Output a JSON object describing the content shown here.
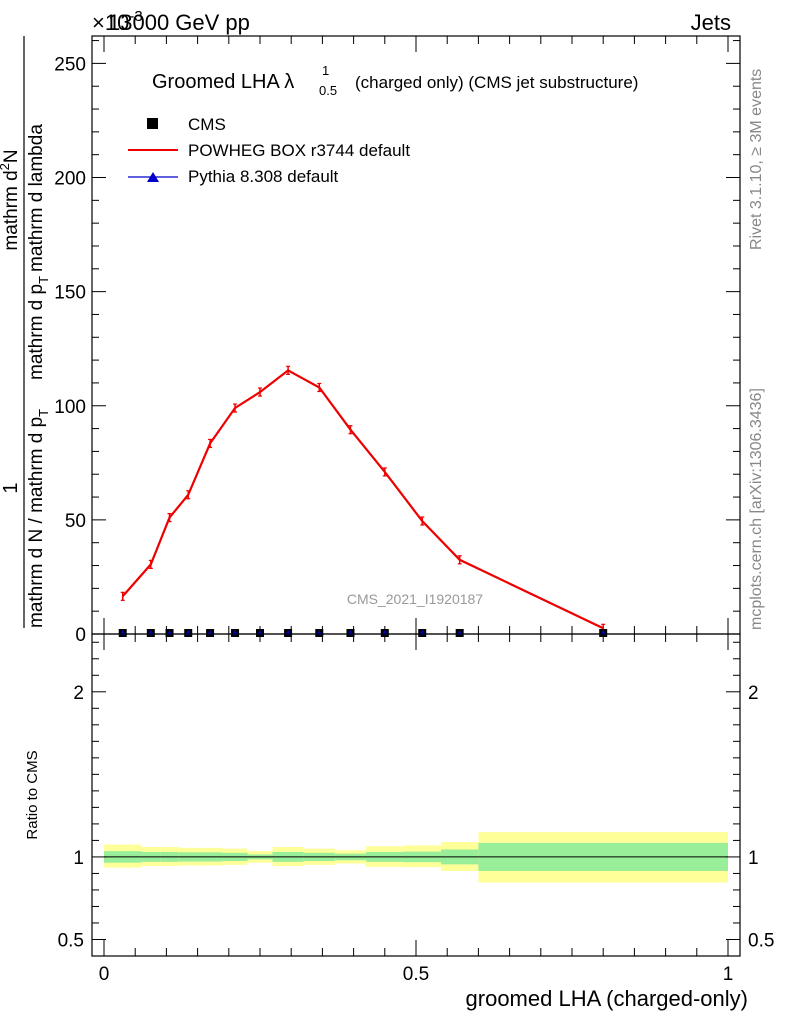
{
  "header": {
    "process": "13000 GeV pp",
    "category": "Jets",
    "multiplier": "×10",
    "multiplier_exp": "-3"
  },
  "side_labels": {
    "rivet": "Rivet 3.1.10, ≥ 3M events",
    "mcplots": "mcplots.cern.ch [arXiv:1306.3436]"
  },
  "watermark": "CMS_2021_I1920187",
  "chart_data": [
    {
      "type": "line",
      "title_main": "Groomed LHA λ",
      "title_sup": "1",
      "title_sub": "0.5",
      "title_rest": "(charged only) (CMS jet substructure)",
      "ylabel": {
        "numerator": "1",
        "denominator": "mathrm d N / mathrm d p",
        "denominator_sub": "T",
        "upper": "mathrm d",
        "upper_sup": "2",
        "upper_rest": "N",
        "lower": "mathrm d p",
        "lower_sub": "T",
        "lower_rest": "mathrm d lambda"
      },
      "xlim": [
        0,
        1
      ],
      "ylim": [
        0,
        262
      ],
      "yticks": [
        0,
        50,
        100,
        150,
        200,
        250
      ],
      "ytick_labels": [
        "0",
        "50",
        "100",
        "150",
        "200",
        "250"
      ],
      "legend_position": "top-left",
      "series": [
        {
          "name": "CMS",
          "color": "#000000",
          "marker": "square",
          "x": [
            0.03,
            0.075,
            0.105,
            0.135,
            0.17,
            0.21,
            0.25,
            0.295,
            0.345,
            0.395,
            0.45,
            0.51,
            0.57,
            0.8
          ],
          "values": [
            0,
            0,
            0,
            0,
            0,
            0,
            0,
            0,
            0,
            0,
            0,
            0,
            0,
            0
          ]
        },
        {
          "name": "POWHEG BOX r3744 default",
          "color": "#ee0000",
          "marker": "none",
          "x": [
            0.03,
            0.075,
            0.105,
            0.135,
            0.17,
            0.21,
            0.25,
            0.295,
            0.345,
            0.395,
            0.45,
            0.51,
            0.57,
            0.8
          ],
          "values": [
            16.5,
            30.5,
            51,
            61,
            83.5,
            99,
            106,
            115.5,
            108,
            89.5,
            71,
            49.5,
            32.5,
            2.5
          ]
        },
        {
          "name": "Pythia 8.308 default",
          "color": "#0000cc",
          "marker": "triangle",
          "x": [
            0.03,
            0.075,
            0.105,
            0.135,
            0.17,
            0.21,
            0.25,
            0.295,
            0.345,
            0.395,
            0.45,
            0.51,
            0.57,
            0.8
          ],
          "values": [
            0,
            0,
            0,
            0,
            0,
            0,
            0,
            0,
            0,
            0,
            0,
            0,
            0,
            0
          ]
        }
      ]
    },
    {
      "type": "area",
      "ylabel": "Ratio to CMS",
      "xlabel": "groomed LHA (charged-only)",
      "xlim": [
        0,
        1
      ],
      "ylim": [
        0.4,
        2.35
      ],
      "xticks": [
        0,
        0.5,
        1
      ],
      "xtick_labels": [
        "0",
        "0.5",
        "1"
      ],
      "yticks": [
        0.5,
        1,
        2
      ],
      "ytick_labels": [
        "0.5",
        "1",
        "2"
      ],
      "reference": 1.0,
      "bins": [
        {
          "lo": 0.0,
          "hi": 0.06,
          "stat": [
            0.965,
            1.035
          ],
          "total": [
            0.935,
            1.075
          ]
        },
        {
          "lo": 0.06,
          "hi": 0.09,
          "stat": [
            0.97,
            1.03
          ],
          "total": [
            0.945,
            1.06
          ]
        },
        {
          "lo": 0.09,
          "hi": 0.12,
          "stat": [
            0.97,
            1.03
          ],
          "total": [
            0.945,
            1.06
          ]
        },
        {
          "lo": 0.12,
          "hi": 0.15,
          "stat": [
            0.972,
            1.028
          ],
          "total": [
            0.948,
            1.055
          ]
        },
        {
          "lo": 0.15,
          "hi": 0.19,
          "stat": [
            0.972,
            1.028
          ],
          "total": [
            0.948,
            1.055
          ]
        },
        {
          "lo": 0.19,
          "hi": 0.23,
          "stat": [
            0.975,
            1.025
          ],
          "total": [
            0.952,
            1.05
          ]
        },
        {
          "lo": 0.23,
          "hi": 0.27,
          "stat": [
            0.985,
            1.015
          ],
          "total": [
            0.965,
            1.035
          ]
        },
        {
          "lo": 0.27,
          "hi": 0.32,
          "stat": [
            0.97,
            1.03
          ],
          "total": [
            0.945,
            1.06
          ]
        },
        {
          "lo": 0.32,
          "hi": 0.37,
          "stat": [
            0.975,
            1.025
          ],
          "total": [
            0.952,
            1.05
          ]
        },
        {
          "lo": 0.37,
          "hi": 0.42,
          "stat": [
            0.98,
            1.02
          ],
          "total": [
            0.96,
            1.04
          ]
        },
        {
          "lo": 0.42,
          "hi": 0.48,
          "stat": [
            0.97,
            1.03
          ],
          "total": [
            0.94,
            1.065
          ]
        },
        {
          "lo": 0.48,
          "hi": 0.54,
          "stat": [
            0.968,
            1.032
          ],
          "total": [
            0.938,
            1.07
          ]
        },
        {
          "lo": 0.54,
          "hi": 0.6,
          "stat": [
            0.955,
            1.045
          ],
          "total": [
            0.915,
            1.09
          ]
        },
        {
          "lo": 0.6,
          "hi": 1.0,
          "stat": [
            0.915,
            1.085
          ],
          "total": [
            0.845,
            1.15
          ]
        }
      ]
    }
  ]
}
